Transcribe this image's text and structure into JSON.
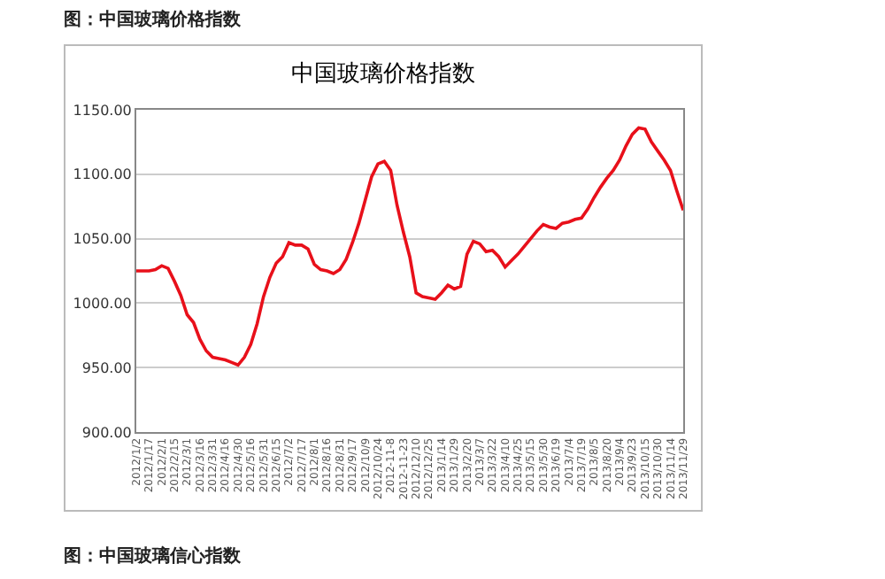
{
  "chart_data": {
    "type": "line",
    "title": "中国玻璃价格指数",
    "annotations": [
      "图：中国玻璃价格指数",
      "图：中国玻璃信心指数"
    ],
    "categories": [
      "2012/1/2",
      null,
      "2012/1/17",
      null,
      "2012/2/1",
      null,
      "2012/2/15",
      null,
      "2012/3/1",
      null,
      "2012/3/16",
      null,
      "2012/3/31",
      null,
      "2012/4/16",
      null,
      "2012/4/30",
      null,
      "2012/5/16",
      null,
      "2012/5/31",
      null,
      "2012/6/15",
      null,
      "2012/7/2",
      null,
      "2012/7/17",
      null,
      "2012/8/1",
      null,
      "2012/8/16",
      null,
      "2012/8/31",
      null,
      "2012/9/17",
      null,
      "2012/10/9",
      null,
      "2012/10/24",
      null,
      "2012-11-8",
      null,
      "2012-11-23",
      null,
      "2012/12/10",
      null,
      "2012/12/25",
      null,
      "2013/1/14",
      null,
      "2013/1/29",
      null,
      "2013/2/20",
      null,
      "2013/3/7",
      null,
      "2013/3/22",
      null,
      "2013/4/10",
      null,
      "2013/4/25",
      null,
      "2013/5/15",
      null,
      "2013/5/30",
      null,
      "2013/6/19",
      null,
      "2013/7/4",
      null,
      "2013/7/19",
      null,
      "2013/8/5",
      null,
      "2013/8/20",
      null,
      "2013/9/4",
      null,
      "2013/9/23",
      null,
      "2013/10/15",
      null,
      "2013/10/30",
      null,
      "2013/11/14",
      null,
      "2013/11/29"
    ],
    "series": [
      {
        "color": "#e8101a",
        "values": [
          1025,
          1025,
          1025,
          1026,
          1029,
          1027,
          1017,
          1006,
          991,
          985,
          972,
          963,
          958,
          957,
          956,
          954,
          952,
          958,
          968,
          984,
          1005,
          1020,
          1031,
          1036,
          1047,
          1045,
          1045,
          1042,
          1030,
          1026,
          1025,
          1023,
          1026,
          1034,
          1047,
          1062,
          1080,
          1098,
          1108,
          1110,
          1103,
          1076,
          1055,
          1036,
          1008,
          1005,
          1004,
          1003,
          1008,
          1014,
          1011,
          1013,
          1038,
          1048,
          1046,
          1040,
          1041,
          1036,
          1028,
          1033,
          1038,
          1044,
          1050,
          1056,
          1061,
          1059,
          1058,
          1062,
          1063,
          1065,
          1066,
          1073,
          1082,
          1090,
          1097,
          1103,
          1111,
          1122,
          1131,
          1136,
          1135,
          1125,
          1118,
          1111,
          1103,
          1087,
          1072
        ]
      }
    ],
    "ylim": [
      900,
      1150
    ],
    "yticks": [
      {
        "value": 900,
        "label": "900.00"
      },
      {
        "value": 950,
        "label": "950.00"
      },
      {
        "value": 1000,
        "label": "1000.00"
      },
      {
        "value": 1050,
        "label": "1050.00"
      },
      {
        "value": 1100,
        "label": "1100.00"
      },
      {
        "value": 1150,
        "label": "1150.00"
      }
    ],
    "grid": "y",
    "marker": "none",
    "line_style": "solid"
  }
}
